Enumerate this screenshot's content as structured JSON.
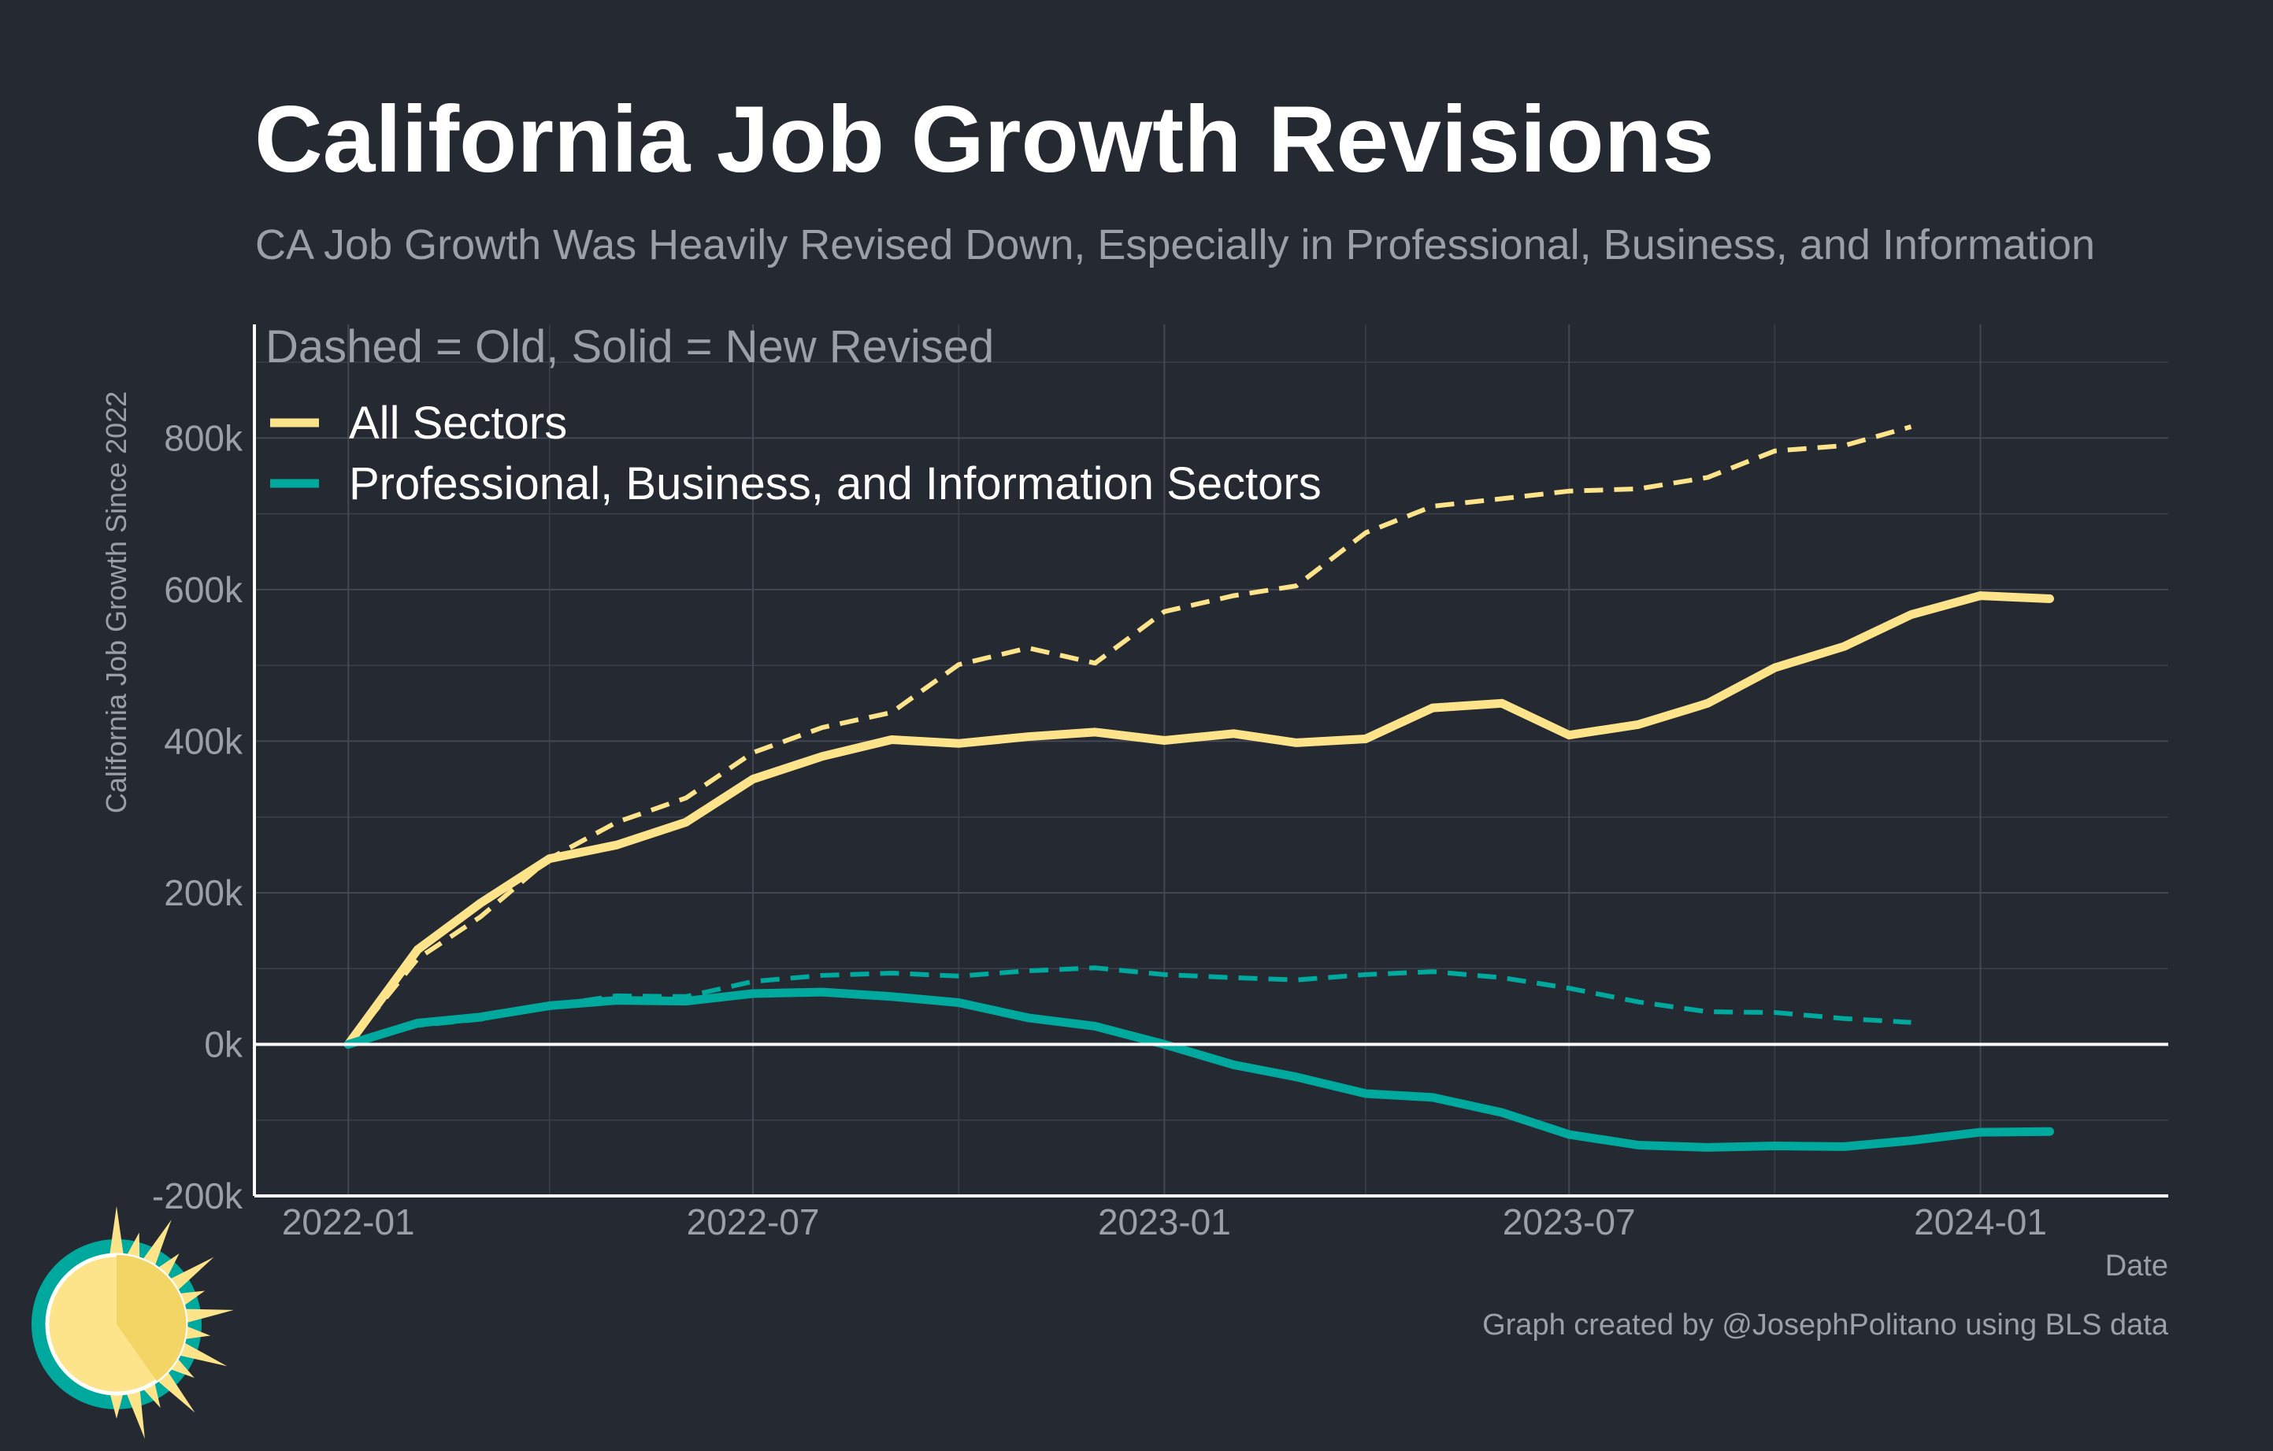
{
  "title": "California Job Growth Revisions",
  "subtitle": "CA Job Growth Was Heavily Revised Down, Especially in Professional, Business, and Information",
  "caption": "Graph created by @JosephPolitano using BLS data",
  "colors": {
    "background": "#252932",
    "all_sectors": "#FDE48A",
    "professional": "#00A99D",
    "zero_line": "#FFFFFF",
    "text_muted": "#9BA0A8",
    "logo_teal": "#00A99D",
    "logo_sun": "#FDE48A"
  },
  "logo": {
    "icon": "sun-logo-icon"
  },
  "chart_data": {
    "type": "line",
    "ylabel": "California Job Growth Since 2022",
    "xlabel": "Date",
    "ylim": [
      -200000,
      950000
    ],
    "xlim": [
      "2021-11-20",
      "2024-03-25"
    ],
    "grid": true,
    "legend_title": "Dashed = Old, Solid = New Revised",
    "legend_position": "top-left",
    "x_ticks": [
      "2022-01",
      "2022-07",
      "2023-01",
      "2023-07",
      "2024-01"
    ],
    "x_tick_dates": [
      "2022-01-01",
      "2022-07-01",
      "2023-01-01",
      "2023-07-01",
      "2024-01-01"
    ],
    "y_ticks": [
      -200000,
      0,
      200000,
      400000,
      600000,
      800000
    ],
    "y_tick_labels": [
      "-200k",
      "0k",
      "200k",
      "400k",
      "600k",
      "800k"
    ],
    "legend": [
      {
        "name": "All Sectors",
        "color": "#FDE48A"
      },
      {
        "name": "Professional, Business, and Information Sectors",
        "color": "#00A99D"
      }
    ],
    "series": [
      {
        "name": "All Sectors",
        "style": "solid",
        "color": "#FDE48A",
        "x": [
          "2022-01",
          "2022-02",
          "2022-03",
          "2022-04",
          "2022-05",
          "2022-06",
          "2022-07",
          "2022-08",
          "2022-09",
          "2022-10",
          "2022-11",
          "2022-12",
          "2023-01",
          "2023-02",
          "2023-03",
          "2023-04",
          "2023-05",
          "2023-06",
          "2023-07",
          "2023-08",
          "2023-09",
          "2023-10",
          "2023-11",
          "2023-12",
          "2024-01",
          "2024-02"
        ],
        "y": [
          0,
          125000,
          186000,
          245000,
          263000,
          293000,
          350000,
          380000,
          402000,
          397000,
          406000,
          412000,
          401000,
          410000,
          398000,
          403000,
          444000,
          450000,
          408000,
          422000,
          450000,
          497000,
          525000,
          567000,
          592000,
          588000
        ]
      },
      {
        "name": "All Sectors",
        "style": "dashed",
        "color": "#FDE48A",
        "x": [
          "2022-01",
          "2022-02",
          "2022-03",
          "2022-04",
          "2022-05",
          "2022-06",
          "2022-07",
          "2022-08",
          "2022-09",
          "2022-10",
          "2022-11",
          "2022-12",
          "2023-01",
          "2023-02",
          "2023-03",
          "2023-04",
          "2023-05",
          "2023-06",
          "2023-07",
          "2023-08",
          "2023-09",
          "2023-10",
          "2023-11",
          "2023-12"
        ],
        "y": [
          0,
          113000,
          168000,
          245000,
          293000,
          325000,
          385000,
          418000,
          438000,
          501000,
          523000,
          503000,
          571000,
          592000,
          605000,
          675000,
          710000,
          720000,
          730000,
          733000,
          748000,
          783000,
          790000,
          815000
        ]
      },
      {
        "name": "Professional, Business, and Information Sectors",
        "style": "solid",
        "color": "#00A99D",
        "x": [
          "2022-01",
          "2022-02",
          "2022-03",
          "2022-04",
          "2022-05",
          "2022-06",
          "2022-07",
          "2022-08",
          "2022-09",
          "2022-10",
          "2022-11",
          "2022-12",
          "2023-01",
          "2023-02",
          "2023-03",
          "2023-04",
          "2023-05",
          "2023-06",
          "2023-07",
          "2023-08",
          "2023-09",
          "2023-10",
          "2023-11",
          "2023-12",
          "2024-01",
          "2024-02"
        ],
        "y": [
          0,
          28000,
          36000,
          51000,
          58000,
          57000,
          67000,
          69000,
          63000,
          55000,
          35000,
          24000,
          0,
          -27000,
          -43000,
          -65000,
          -70000,
          -90000,
          -119000,
          -133000,
          -136000,
          -134000,
          -135000,
          -127000,
          -116000,
          -115000
        ]
      },
      {
        "name": "Professional, Business, and Information Sectors",
        "style": "dashed",
        "color": "#00A99D",
        "x": [
          "2022-01",
          "2022-02",
          "2022-03",
          "2022-04",
          "2022-05",
          "2022-06",
          "2022-07",
          "2022-08",
          "2022-09",
          "2022-10",
          "2022-11",
          "2022-12",
          "2023-01",
          "2023-02",
          "2023-03",
          "2023-04",
          "2023-05",
          "2023-06",
          "2023-07",
          "2023-08",
          "2023-09",
          "2023-10",
          "2023-11",
          "2023-12"
        ],
        "y": [
          0,
          25000,
          33000,
          51000,
          64000,
          63000,
          83000,
          91000,
          94000,
          90000,
          97000,
          101000,
          92000,
          88000,
          85000,
          92000,
          96000,
          88000,
          74000,
          56000,
          43000,
          42000,
          34000,
          29000
        ]
      }
    ]
  }
}
